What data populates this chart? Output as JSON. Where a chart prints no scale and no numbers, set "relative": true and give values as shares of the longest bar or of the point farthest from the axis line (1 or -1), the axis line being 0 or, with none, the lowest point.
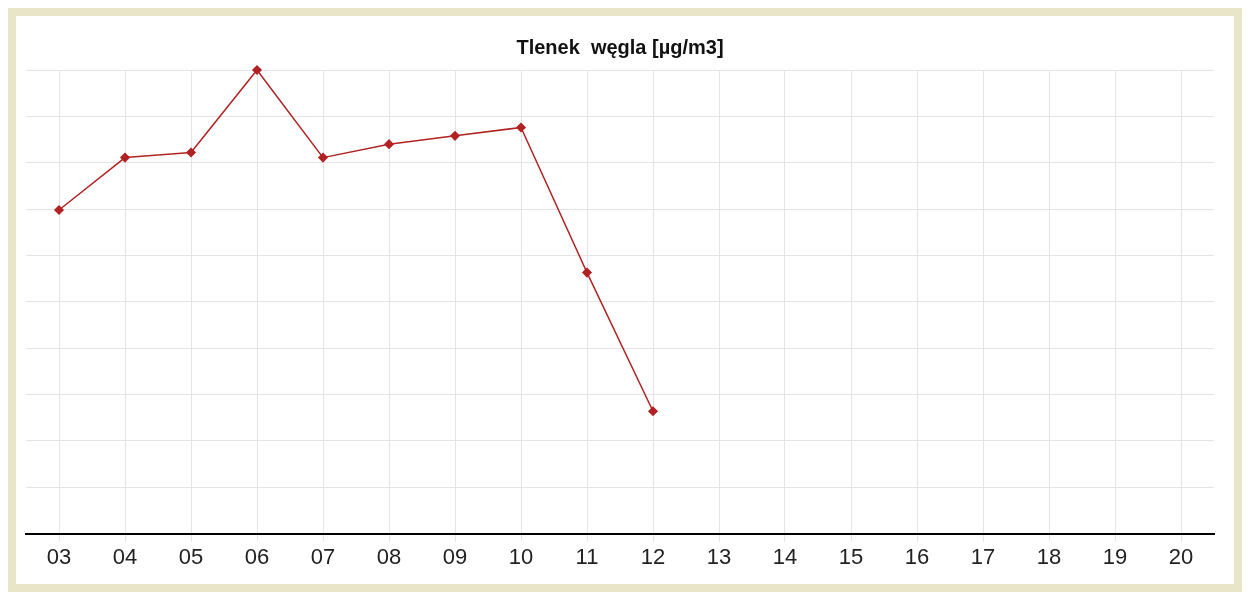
{
  "chart_data": {
    "type": "line",
    "title": "Tlenek  węgla [µg/m3]",
    "relative": true,
    "categories": [
      "03",
      "04",
      "05",
      "06",
      "07",
      "08",
      "09",
      "10",
      "11",
      "12",
      "13",
      "14",
      "15",
      "16",
      "17",
      "18",
      "19",
      "20"
    ],
    "series": [
      {
        "color": "#b22222",
        "values": [
          0.698,
          0.811,
          0.822,
          1,
          0.811,
          0.84,
          0.858,
          0.876,
          0.563,
          0.264,
          null,
          null,
          null,
          null,
          null,
          null,
          null,
          null
        ]
      }
    ],
    "grid": true,
    "legend": false,
    "marker": "diamond",
    "line_style": "solid"
  }
}
